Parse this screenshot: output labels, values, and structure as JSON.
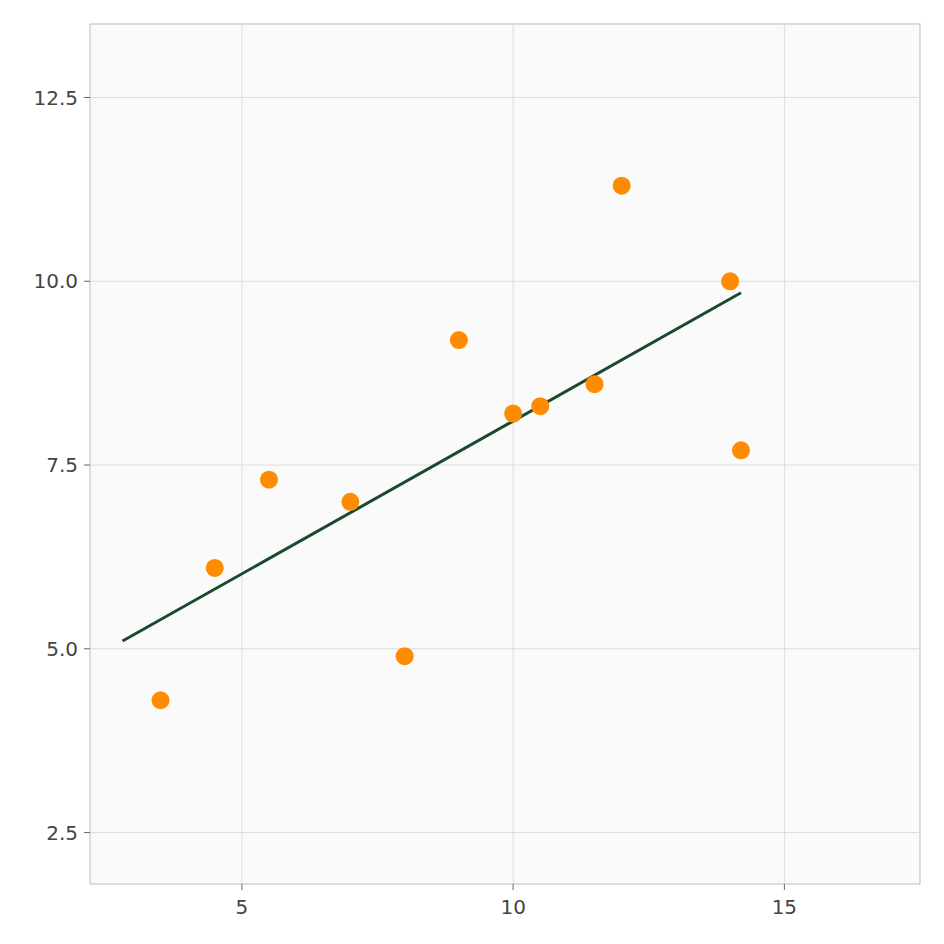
{
  "chart_data": {
    "type": "scatter",
    "series": [
      {
        "type": "scatter",
        "color": "#FF8C00",
        "x": [
          3.5,
          4.5,
          5.5,
          7.0,
          8.0,
          9.0,
          10.0,
          10.5,
          11.5,
          12.0,
          14.0,
          14.2
        ],
        "values": [
          4.3,
          6.1,
          7.3,
          7.0,
          4.9,
          9.2,
          8.2,
          8.3,
          8.6,
          11.3,
          10.0,
          7.7
        ]
      },
      {
        "type": "line",
        "color": "#1a4a2e",
        "x": [
          2.8,
          14.2
        ],
        "values": [
          5.1058,
          9.8441
        ]
      }
    ],
    "xlim": [
      2.2,
      17.5
    ],
    "ylim": [
      1.8,
      13.5
    ],
    "xticks": [
      5,
      10,
      15
    ],
    "yticks": [
      2.5,
      {
        "value": 5.0,
        "label": "5.0"
      },
      7.5,
      {
        "value": 10.0,
        "label": "10.0"
      },
      12.5
    ],
    "grid": true
  }
}
